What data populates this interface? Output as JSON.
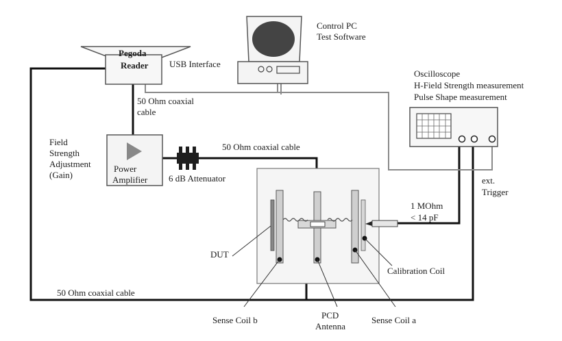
{
  "labels": {
    "control_pc_line1": "Control PC",
    "control_pc_line2": "Test Software",
    "reader_line1": "Pegoda",
    "reader_line2": "Reader",
    "usb": "USB Interface",
    "osc_line1": "Oscilloscope",
    "osc_line2": "H-Field Strength measurement",
    "osc_line3": "Pulse Shape measurement",
    "coax_reader_line1": "50 Ohm coaxial",
    "coax_reader_line2": "cable",
    "field_adj_line1": "Field",
    "field_adj_line2": "Strength",
    "field_adj_line3": "Adjustment",
    "field_adj_line4": "(Gain)",
    "amp_line1": "Power",
    "amp_line2": "Amplifier",
    "coax_antenna": "50 Ohm coaxial cable",
    "attenuator": "6 dB Attenuator",
    "ext_line1": "ext.",
    "ext_line2": "Trigger",
    "probe_line1": "1 MOhm",
    "probe_line2": "< 14 pF",
    "dut": "DUT",
    "cal_coil": "Calibration Coil",
    "coax_bottom": "50 Ohm coaxial cable",
    "sense_b": "Sense Coil b",
    "pcd_line1": "PCD",
    "pcd_line2": "Antenna",
    "sense_a": "Sense Coil a"
  }
}
